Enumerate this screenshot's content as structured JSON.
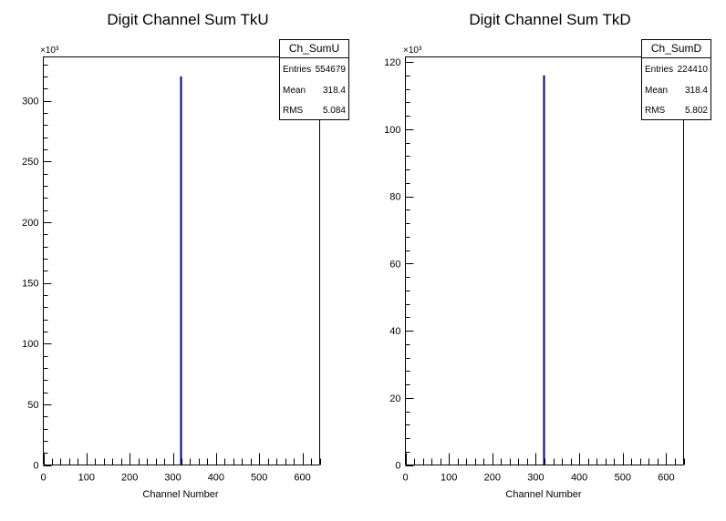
{
  "panels": [
    {
      "title": "Digit Channel Sum TkU",
      "stats": {
        "name": "Ch_SumU",
        "rows": [
          {
            "label": "Entries",
            "value": "554679"
          },
          {
            "label": "Mean",
            "value": "318.4"
          },
          {
            "label": "RMS",
            "value": "5.084"
          }
        ]
      }
    },
    {
      "title": "Digit Channel Sum TkD",
      "stats": {
        "name": "Ch_SumD",
        "rows": [
          {
            "label": "Entries",
            "value": "224410"
          },
          {
            "label": "Mean",
            "value": "318.4"
          },
          {
            "label": "RMS",
            "value": "5.802"
          }
        ]
      }
    }
  ],
  "chart_data": [
    {
      "type": "bar",
      "title": "Digit Channel Sum TkU",
      "xlabel": "Channel Number",
      "ylabel": "",
      "y_multiplier": "×10³",
      "xlim": [
        0,
        640
      ],
      "ylim": [
        0,
        336
      ],
      "xticks": [
        0,
        100,
        200,
        300,
        400,
        500,
        600
      ],
      "yticks": [
        0,
        50,
        100,
        150,
        200,
        250,
        300
      ],
      "bins": [
        {
          "x": 318,
          "y": 320
        }
      ],
      "line_color": "#000080",
      "grid": false,
      "legend": "top-right"
    },
    {
      "type": "bar",
      "title": "Digit Channel Sum TkD",
      "xlabel": "Channel Number",
      "ylabel": "",
      "y_multiplier": "×10³",
      "xlim": [
        0,
        640
      ],
      "ylim": [
        0,
        121.5
      ],
      "xticks": [
        0,
        100,
        200,
        300,
        400,
        500,
        600
      ],
      "yticks": [
        0,
        20,
        40,
        60,
        80,
        100,
        120
      ],
      "bins": [
        {
          "x": 318,
          "y": 116
        }
      ],
      "line_color": "#000080",
      "grid": false,
      "legend": "top-right"
    }
  ]
}
